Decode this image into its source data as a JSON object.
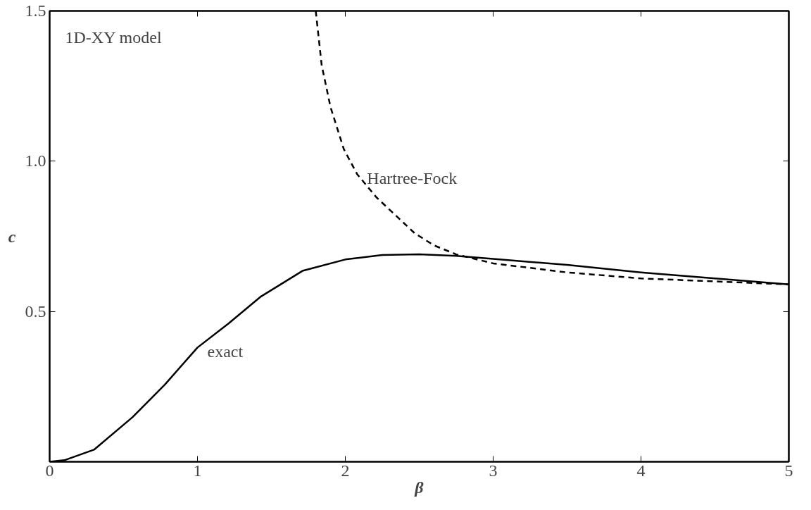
{
  "chart_data": {
    "type": "line",
    "title": "1D-XY model",
    "xlabel": "β",
    "ylabel": "c",
    "xlim": [
      0,
      5
    ],
    "ylim": [
      0,
      1.5
    ],
    "xticks": [
      0,
      1,
      2,
      3,
      4,
      5
    ],
    "yticks": [
      {
        "value": 0.5,
        "label": "0.5"
      },
      {
        "value": 1.0,
        "label": "1.0"
      },
      {
        "value": 1.5,
        "label": "1.5"
      }
    ],
    "grid": false,
    "legend": false,
    "marker": "none",
    "series": [
      {
        "name": "exact",
        "color": "#000000",
        "line_style": "solid",
        "x": [
          0,
          0.1,
          0.3,
          0.56,
          0.78,
          1.0,
          1.21,
          1.43,
          1.71,
          2.0,
          2.25,
          2.5,
          2.75,
          3.0,
          3.5,
          4.0,
          4.5,
          5.0
        ],
        "values": [
          0,
          0.005,
          0.04,
          0.148,
          0.257,
          0.38,
          0.46,
          0.55,
          0.635,
          0.673,
          0.688,
          0.69,
          0.685,
          0.675,
          0.655,
          0.63,
          0.61,
          0.59
        ]
      },
      {
        "name": "Hartree-Fock",
        "color": "#000000",
        "line_style": "dashed",
        "x": [
          1.8,
          1.84,
          1.9,
          1.99,
          2.08,
          2.21,
          2.34,
          2.47,
          2.6,
          2.75,
          3.0,
          3.5,
          4.0,
          4.5,
          5.0
        ],
        "values": [
          1.5,
          1.32,
          1.18,
          1.04,
          0.957,
          0.88,
          0.82,
          0.76,
          0.72,
          0.69,
          0.66,
          0.63,
          0.61,
          0.6,
          0.59
        ]
      }
    ]
  }
}
